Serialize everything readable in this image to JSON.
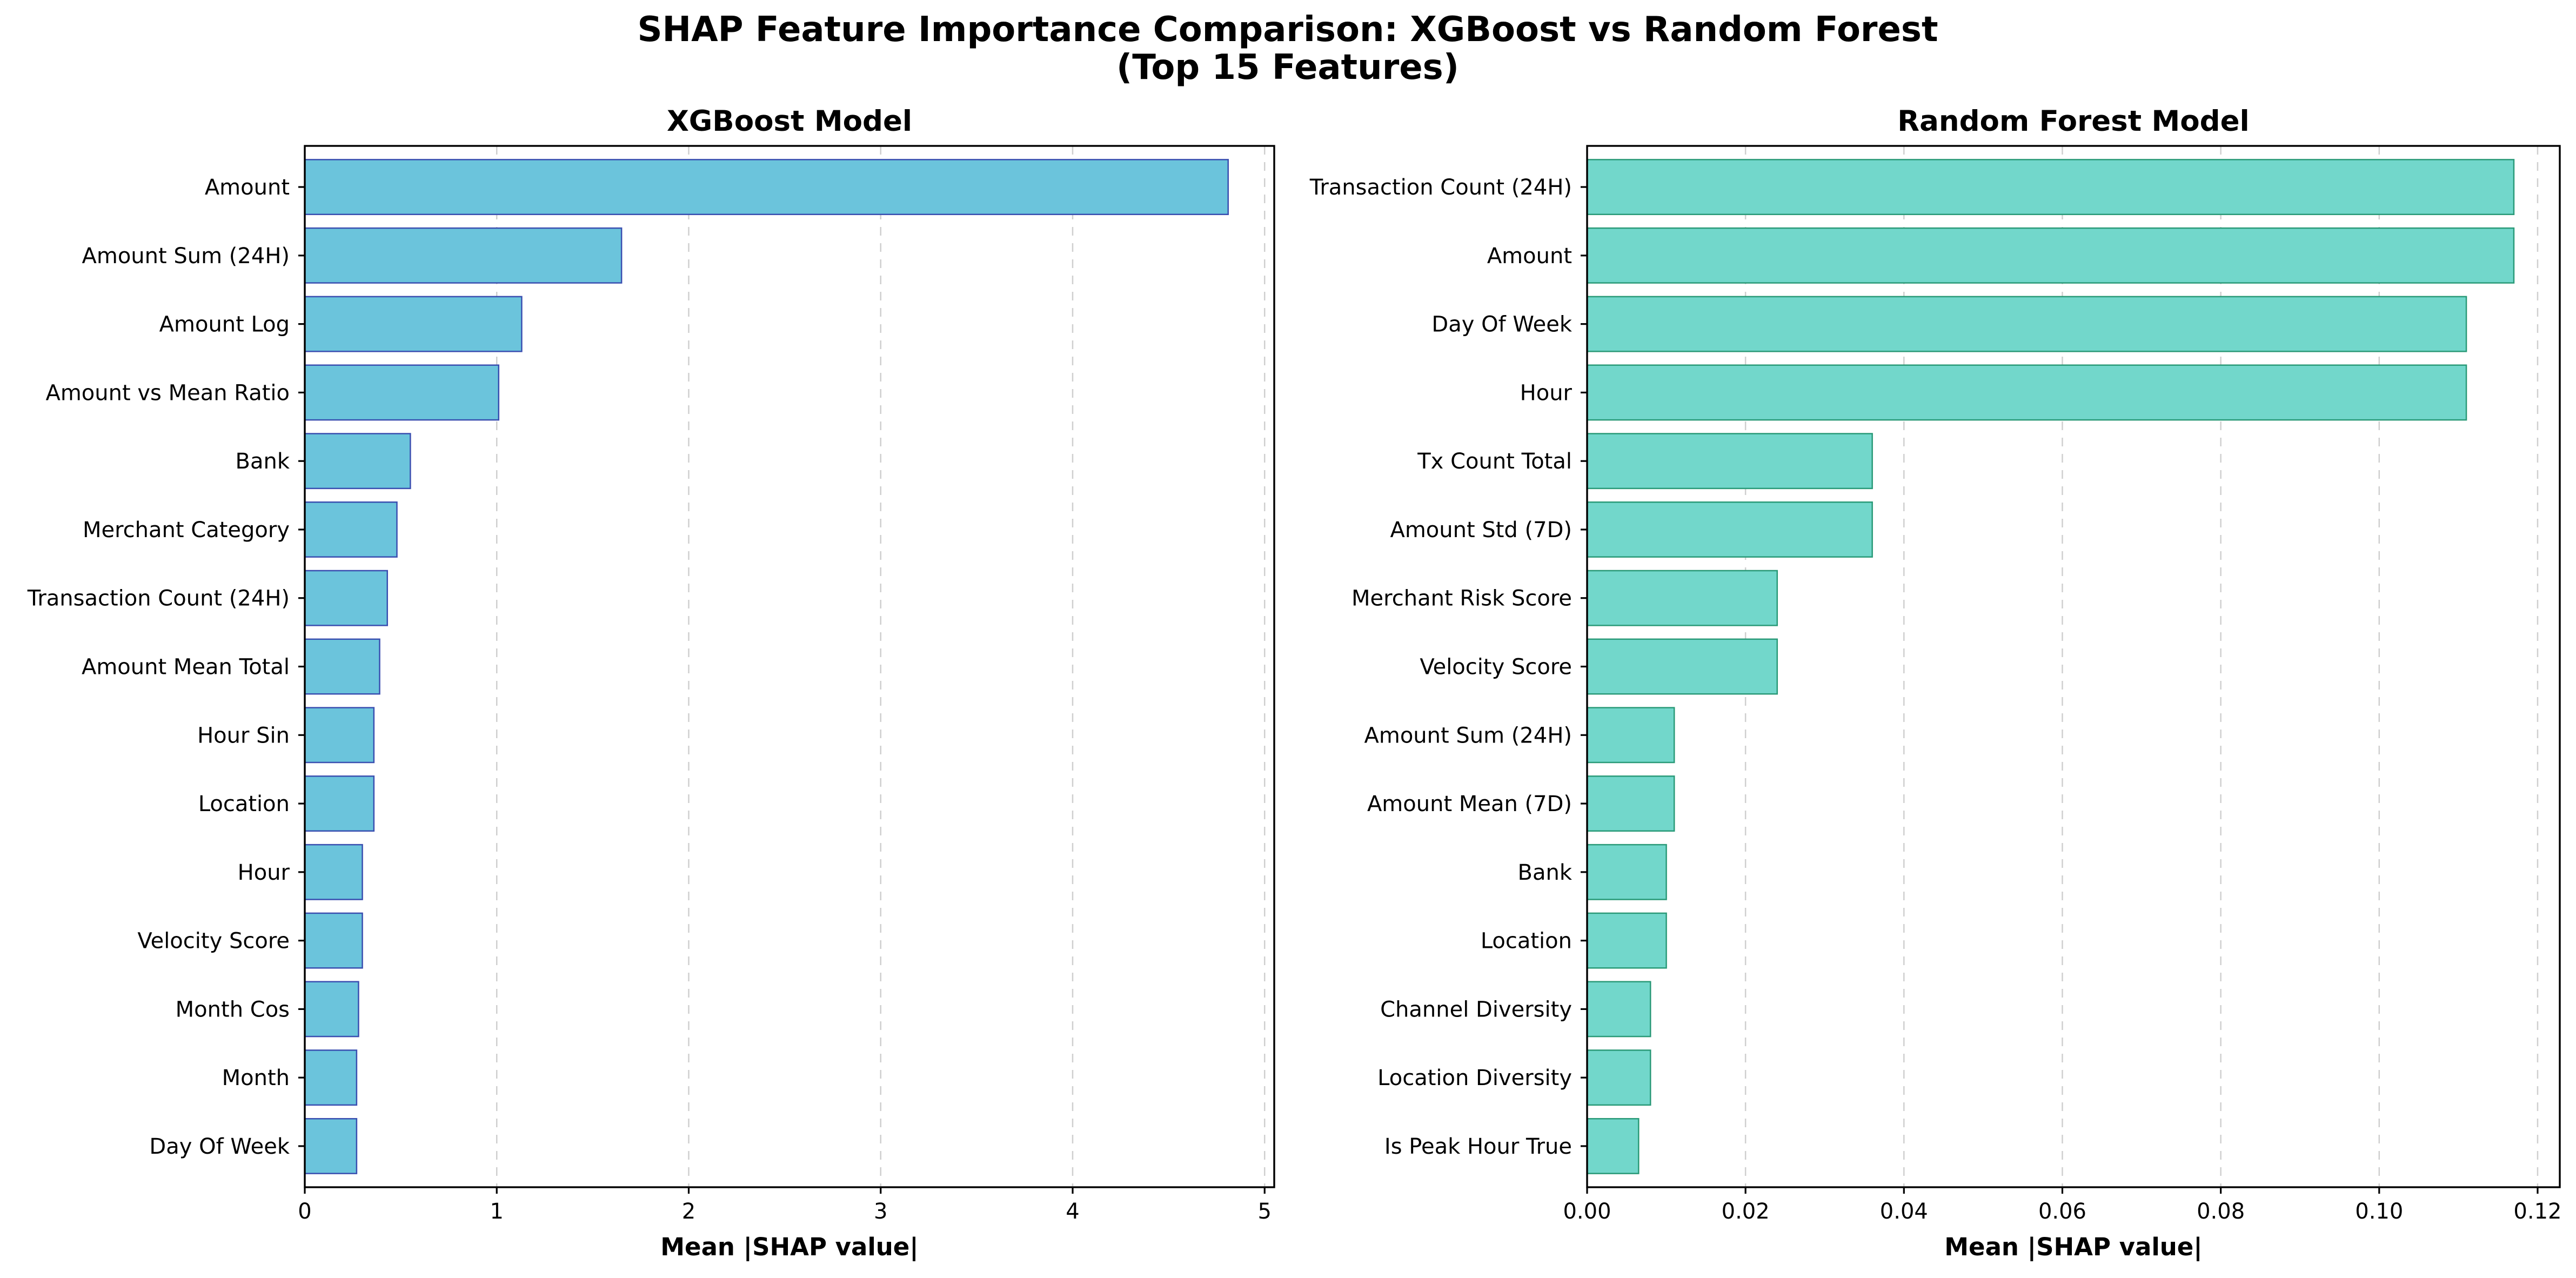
{
  "figure": {
    "suptitle_line1": "SHAP Feature Importance Comparison: XGBoost vs Random Forest",
    "suptitle_line2": "(Top 15 Features)"
  },
  "chart_data": [
    {
      "type": "bar",
      "orientation": "horizontal",
      "title": "XGBoost Model",
      "xlabel": "Mean |SHAP value|",
      "ylabel": "",
      "xlim": [
        0,
        5.05
      ],
      "xticks": [
        0,
        1,
        2,
        3,
        4,
        5
      ],
      "xtick_labels": [
        "0",
        "1",
        "2",
        "3",
        "4",
        "5"
      ],
      "grid": "x-axis dashed",
      "bar_color": "#6bc4dc",
      "edge_color": "#3a4fb0",
      "categories": [
        "Amount",
        "Amount Sum (24H)",
        "Amount Log",
        "Amount vs Mean Ratio",
        "Bank",
        "Merchant Category",
        "Transaction Count (24H)",
        "Amount Mean Total",
        "Hour Sin",
        "Location",
        "Hour",
        "Velocity Score",
        "Month Cos",
        "Month",
        "Day Of Week"
      ],
      "values": [
        4.81,
        1.65,
        1.13,
        1.01,
        0.55,
        0.48,
        0.43,
        0.39,
        0.36,
        0.36,
        0.3,
        0.3,
        0.28,
        0.27,
        0.27
      ]
    },
    {
      "type": "bar",
      "orientation": "horizontal",
      "title": "Random Forest Model",
      "xlabel": "Mean |SHAP value|",
      "ylabel": "",
      "xlim": [
        0,
        0.1228
      ],
      "xticks": [
        0,
        0.02,
        0.04,
        0.06,
        0.08,
        0.1,
        0.12
      ],
      "xtick_labels": [
        "0.00",
        "0.02",
        "0.04",
        "0.06",
        "0.08",
        "0.10",
        "0.12"
      ],
      "grid": "x-axis dashed",
      "bar_color": "#72d7cb",
      "edge_color": "#2a9a78",
      "categories": [
        "Transaction Count (24H)",
        "Amount",
        "Day Of Week",
        "Hour",
        "Tx Count Total",
        "Amount Std (7D)",
        "Merchant Risk Score",
        "Velocity Score",
        "Amount Sum (24H)",
        "Amount Mean (7D)",
        "Bank",
        "Location",
        "Channel Diversity",
        "Location Diversity",
        "Is Peak Hour True"
      ],
      "values": [
        0.117,
        0.117,
        0.111,
        0.111,
        0.036,
        0.036,
        0.024,
        0.024,
        0.011,
        0.011,
        0.01,
        0.01,
        0.008,
        0.008,
        0.0065
      ]
    }
  ]
}
